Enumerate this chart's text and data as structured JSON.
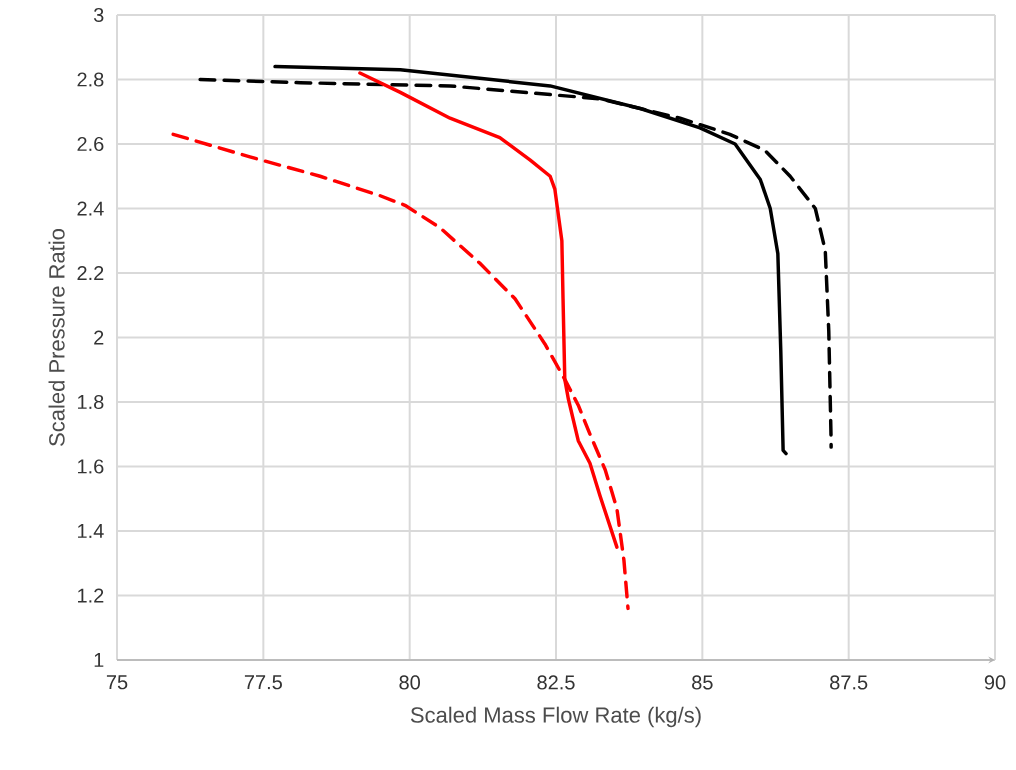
{
  "chart_data": {
    "type": "line",
    "xlabel": "Scaled Mass Flow Rate (kg/s)",
    "ylabel": "Scaled Pressure Ratio",
    "xlim": [
      75,
      90
    ],
    "ylim": [
      1,
      3
    ],
    "xticks": [
      75,
      77.5,
      80,
      82.5,
      85,
      87.5,
      90
    ],
    "yticks": [
      1,
      1.2,
      1.4,
      1.6,
      1.8,
      2,
      2.2,
      2.4,
      2.6,
      2.8,
      3
    ],
    "grid": true,
    "marker": "none",
    "series": [
      {
        "color": "#000000",
        "line_style": "solid",
        "x": [
          77.7,
          79.84,
          82.4,
          83.94,
          84.96,
          85.56,
          85.99,
          86.16,
          86.29,
          86.34,
          86.38,
          86.43
        ],
        "values": [
          2.84,
          2.83,
          2.78,
          2.71,
          2.65,
          2.6,
          2.49,
          2.4,
          2.26,
          1.96,
          1.65,
          1.64
        ]
      },
      {
        "color": "#000000",
        "line_style": "dashed",
        "x": [
          76.42,
          78.13,
          80.69,
          83.25,
          84.62,
          85.47,
          86.07,
          86.5,
          86.93,
          87.1,
          87.16,
          87.2,
          87.2
        ],
        "values": [
          2.8,
          2.79,
          2.78,
          2.74,
          2.68,
          2.63,
          2.58,
          2.5,
          2.4,
          2.27,
          2.02,
          1.68,
          1.66
        ]
      },
      {
        "color": "#ff0000",
        "line_style": "solid",
        "x": [
          79.15,
          79.84,
          80.69,
          81.54,
          82.06,
          82.4,
          82.48,
          82.6,
          82.62,
          82.65,
          82.71,
          82.88,
          83.08,
          83.25,
          83.54
        ],
        "values": [
          2.82,
          2.76,
          2.68,
          2.62,
          2.55,
          2.5,
          2.46,
          2.3,
          2.12,
          1.87,
          1.81,
          1.68,
          1.61,
          1.51,
          1.35
        ]
      },
      {
        "color": "#ff0000",
        "line_style": "dashed",
        "x": [
          75.96,
          77.27,
          78.47,
          79.49,
          79.92,
          80.52,
          81.2,
          81.8,
          82.31,
          82.65,
          82.88,
          83.08,
          83.34,
          83.54,
          83.66,
          83.73
        ],
        "values": [
          2.63,
          2.56,
          2.5,
          2.44,
          2.41,
          2.34,
          2.23,
          2.12,
          1.98,
          1.87,
          1.79,
          1.7,
          1.59,
          1.47,
          1.31,
          1.16
        ]
      }
    ]
  }
}
